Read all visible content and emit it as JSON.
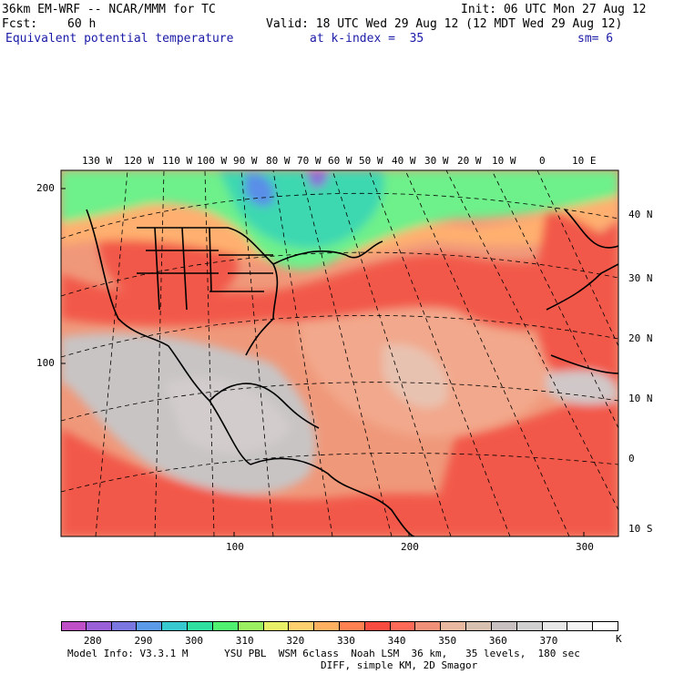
{
  "header": {
    "model": "36km EM-WRF -- NCAR/MMM for TC",
    "init": "Init: 06 UTC Mon 27 Aug 12",
    "fcst_label": "Fcst:",
    "fcst_value": "60 h",
    "valid": "Valid: 18 UTC Wed 29 Aug 12 (12 MDT Wed 29 Aug 12)",
    "field": "Equivalent potential temperature",
    "level": "at k-index =  35",
    "smooth": "sm= 6"
  },
  "map": {
    "lon_labels": [
      "130 W",
      "120 W",
      "110 W",
      "100 W",
      "90 W",
      "80 W",
      "70 W",
      "60 W",
      "50 W",
      "40 W",
      "30 W",
      "20 W",
      "10 W",
      "0",
      "10 E"
    ],
    "lat_labels": [
      "40 N",
      "30 N",
      "20 N",
      "10 N",
      "0",
      "10 S"
    ],
    "y_grid_labels": [
      "200",
      "100"
    ],
    "x_grid_labels": [
      "100",
      "200",
      "300"
    ]
  },
  "legend": {
    "colors": [
      "#c050c8",
      "#9a60d8",
      "#7a78e0",
      "#5a9ae8",
      "#38c8d0",
      "#30e0a0",
      "#50f070",
      "#9af060",
      "#e8f068",
      "#ffd070",
      "#ffb060",
      "#ff8050",
      "#f84c40",
      "#ff6a58",
      "#f09078",
      "#e8b8a0",
      "#d8c0b0",
      "#c8c0c0",
      "#d0d0d0",
      "#e8e8e8",
      "#f4f4f4",
      "#ffffff"
    ],
    "labels": [
      "280",
      "290",
      "300",
      "310",
      "320",
      "330",
      "340",
      "350",
      "360",
      "370"
    ],
    "unit": "K"
  },
  "footer": {
    "line1": "Model Info: V3.3.1 M      YSU PBL  WSM 6class  Noah LSM  36 km,   35 levels,  180 sec",
    "line2": "DIFF, simple KM, 2D Smagor"
  }
}
